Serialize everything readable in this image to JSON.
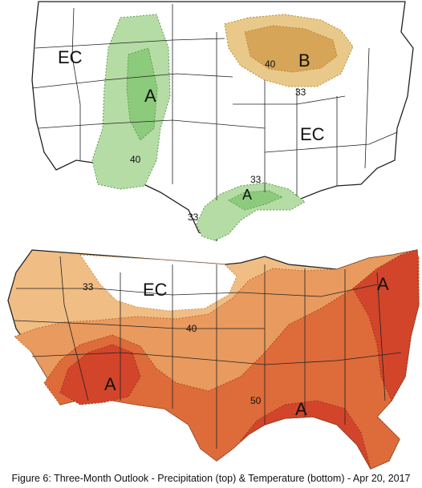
{
  "caption": "Figure 6: Three-Month Outlook - Precipitation (top) & Temperature (bottom) - Apr 20, 2017",
  "colors": {
    "precip_above_light": "#b6dca6",
    "precip_above_dark": "#8ccb7b",
    "precip_below_light": "#e9c989",
    "precip_below_dark": "#d6a558",
    "temp_33": "#f0bd84",
    "temp_40": "#e99a5e",
    "temp_50": "#de6b3a",
    "temp_60": "#d2452b",
    "boundary": "#222222"
  },
  "precipitation": {
    "labels": {
      "ec_west": "EC",
      "ec_east": "EC",
      "a_plains": "A",
      "b_lakes": "B",
      "a_gulf": "A",
      "c40_plains": "40",
      "c40_lakes": "40",
      "c33_lakes": "33",
      "c33_gulf_n": "33",
      "c33_gulf_s": "33"
    }
  },
  "temperature": {
    "labels": {
      "ec_north": "EC",
      "c33_nw": "33",
      "c40_north": "40",
      "a_sw": "A",
      "c50_south": "50",
      "a_gulf": "A",
      "a_ne": "A"
    }
  }
}
